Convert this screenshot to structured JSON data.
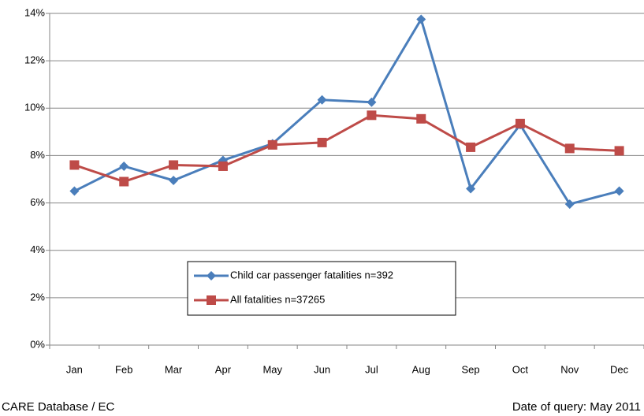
{
  "chart_data": {
    "type": "line",
    "categories": [
      "Jan",
      "Feb",
      "Mar",
      "Apr",
      "May",
      "Jun",
      "Jul",
      "Aug",
      "Sep",
      "Oct",
      "Nov",
      "Dec"
    ],
    "series": [
      {
        "name": "Child car passenger fatalities  n=392",
        "color": "#4a7ebb",
        "marker": "diamond",
        "values": [
          6.5,
          7.55,
          6.95,
          7.8,
          8.5,
          10.35,
          10.25,
          13.75,
          6.6,
          9.3,
          5.95,
          6.5
        ]
      },
      {
        "name": "All fatalities  n=37265",
        "color": "#be4b48",
        "marker": "square",
        "values": [
          7.6,
          6.9,
          7.6,
          7.55,
          8.45,
          8.55,
          9.7,
          9.55,
          8.35,
          9.35,
          8.3,
          8.2
        ]
      }
    ],
    "ylim": [
      0,
      14
    ],
    "yticks": [
      {
        "value": 0,
        "label": "0%"
      },
      {
        "value": 2,
        "label": "2%"
      },
      {
        "value": 4,
        "label": "4%"
      },
      {
        "value": 6,
        "label": "6%"
      },
      {
        "value": 8,
        "label": "8%"
      },
      {
        "value": 10,
        "label": "10%"
      },
      {
        "value": 12,
        "label": "12%"
      },
      {
        "value": 14,
        "label": "14%"
      }
    ],
    "grid": true,
    "source": "CARE Database / EC",
    "note": "Date of query: May 2011"
  }
}
